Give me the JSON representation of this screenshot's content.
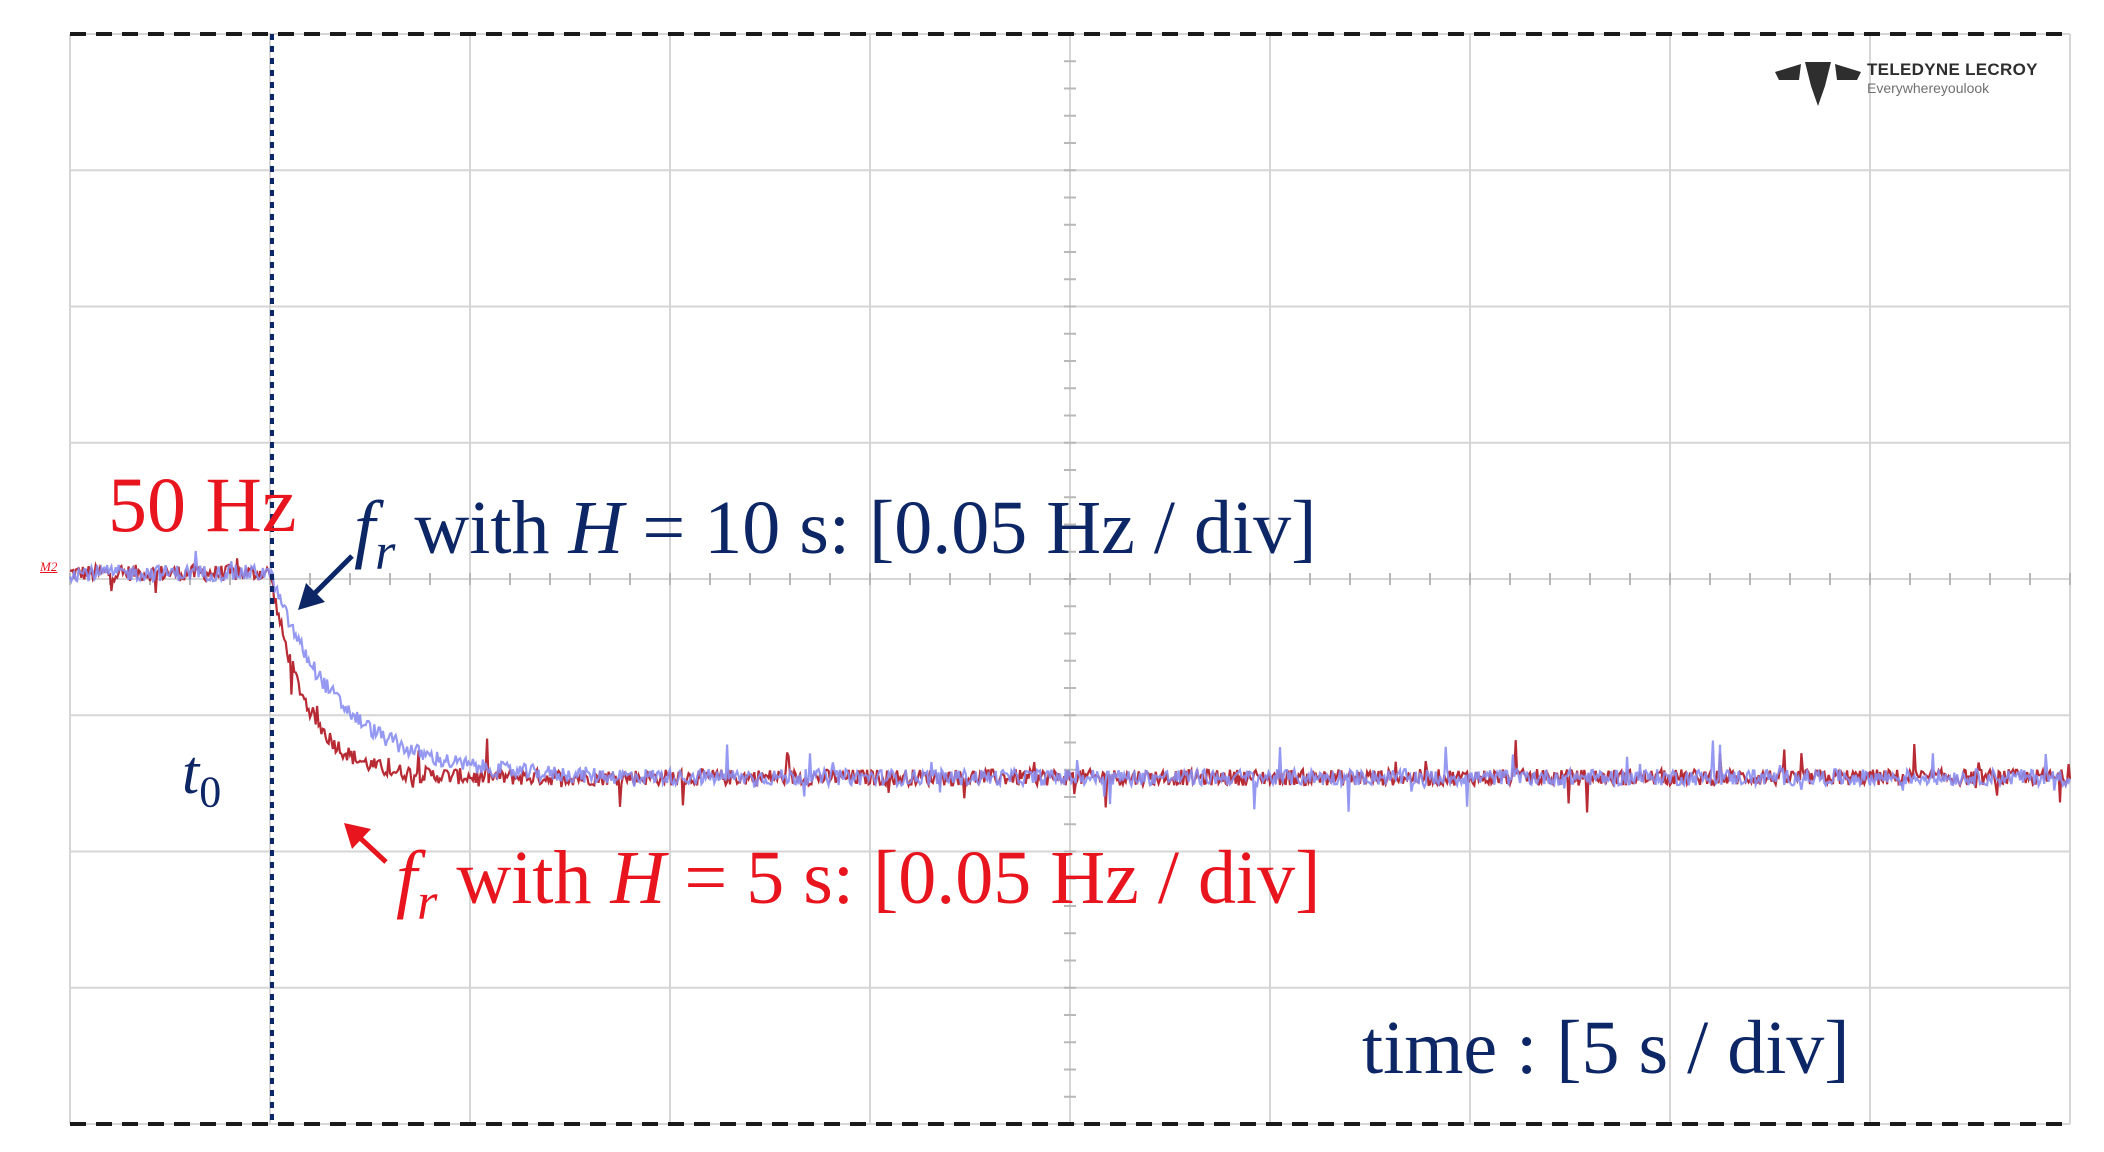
{
  "colors": {
    "navy": "#0d2766",
    "red": "#e8141e",
    "trace_blue": "#8a8ef0",
    "trace_red": "#b0141e",
    "grid": "#d6d6d6"
  },
  "logo": {
    "brand": "TELEDYNE LECROY",
    "tagline": "Everywhereyoulook"
  },
  "chart_data": {
    "type": "line",
    "channel_marker": "M2",
    "x_label": "time : [5 s / div]",
    "x_divisions": 10,
    "y_divisions": 8,
    "grid": true,
    "start_marker": "t0",
    "level_annotation": "50 Hz",
    "series": [
      {
        "name": "fr with H = 10 s: [0.05 Hz / div]",
        "name_parts": {
          "var": "f",
          "sub": "r",
          "mid": " with ",
          "param": "H",
          "rest": " = 10 s: [0.05 Hz / div]"
        },
        "color": "#8a8ef0",
        "initial_div": 0.0,
        "final_div": -1.5,
        "step_time_div": 1.0,
        "time_constant_div": 0.35
      },
      {
        "name": "fr with H = 5 s: [0.05 Hz / div]",
        "name_parts": {
          "var": "f",
          "sub": "r",
          "mid": " with ",
          "param": "H",
          "rest": " = 5 s: [0.05 Hz / div]"
        },
        "color": "#b0141e",
        "initial_div": 0.0,
        "final_div": -1.5,
        "step_time_div": 1.0,
        "time_constant_div": 0.18
      }
    ]
  }
}
